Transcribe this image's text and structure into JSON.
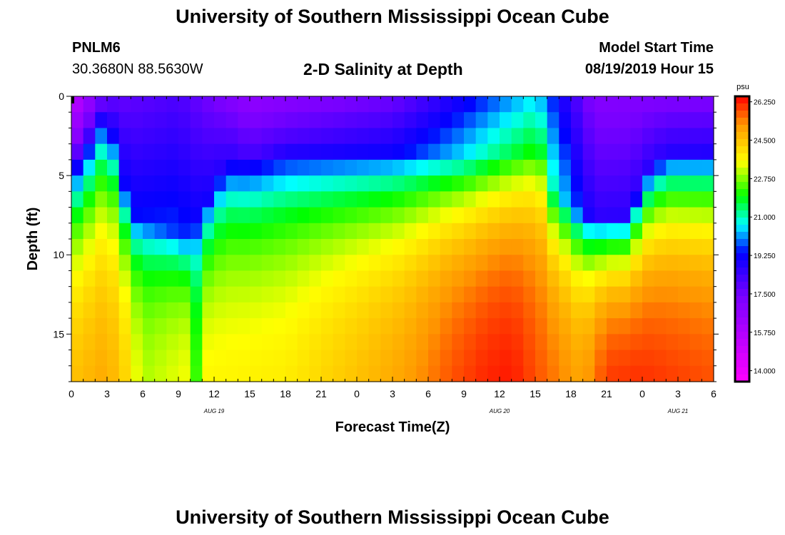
{
  "page": {
    "title_top": "University of Southern Mississippi Ocean Cube",
    "title_bottom": "University of Southern Mississippi Ocean Cube",
    "station_id": "PNLM6",
    "station_coords": "30.3680N 88.5630W",
    "plot_title": "2-D Salinity at Depth",
    "model_label": "Model Start Time",
    "model_time": "08/19/2019 Hour 15"
  },
  "chart_data": {
    "type": "heatmap",
    "title": "2-D Salinity at Depth",
    "xlabel": "Forecast Time(Z)",
    "ylabel": "Depth (ft)",
    "x_ticks": [
      "0",
      "3",
      "6",
      "9",
      "12",
      "15",
      "18",
      "21",
      "0",
      "3",
      "6",
      "9",
      "12",
      "15",
      "18",
      "21",
      "0",
      "3",
      "6"
    ],
    "x_range_hours": [
      0,
      54
    ],
    "date_labels": [
      {
        "text": "AUG 19",
        "hour": 12
      },
      {
        "text": "AUG 20",
        "hour": 36
      },
      {
        "text": "AUG 21",
        "hour": 51
      }
    ],
    "y_ticks": [
      "0",
      "5",
      "10",
      "15"
    ],
    "y_range_ft": [
      0,
      18
    ],
    "colorbar": {
      "unit": "psu",
      "min": 13.5,
      "max": 26.5,
      "ticks": [
        "26.250",
        "24.500",
        "22.750",
        "21.000",
        "19.250",
        "17.500",
        "15.750",
        "14.000"
      ]
    },
    "grid": {
      "columns": 54,
      "rows": 18,
      "x_step_hours": 1,
      "y_step_ft": 1
    },
    "mixed_layer_depth_ft": [
      {
        "hour": 0,
        "depth": 3.5
      },
      {
        "hour": 3,
        "depth": 1.0
      },
      {
        "hour": 5,
        "depth": 7.5
      },
      {
        "hour": 10,
        "depth": 9.0
      },
      {
        "hour": 13,
        "depth": 4.0
      },
      {
        "hour": 18,
        "depth": 3.2
      },
      {
        "hour": 27,
        "depth": 3.5
      },
      {
        "hour": 33,
        "depth": 4.0
      },
      {
        "hour": 40,
        "depth": 3.5
      },
      {
        "hour": 40.5,
        "depth": 6.0
      },
      {
        "hour": 43,
        "depth": 7.5
      },
      {
        "hour": 47,
        "depth": 7.5
      },
      {
        "hour": 48,
        "depth": 5.0
      },
      {
        "hour": 50,
        "depth": 3.5
      },
      {
        "hour": 54,
        "depth": 3.5
      }
    ],
    "surface_salinity_psu": [
      {
        "hour": 0,
        "value": 15.2
      },
      {
        "hour": 3,
        "value": 17.6
      },
      {
        "hour": 9,
        "value": 18.1
      },
      {
        "hour": 15,
        "value": 16.6
      },
      {
        "hour": 27,
        "value": 17.5
      },
      {
        "hour": 36,
        "value": 19.8
      },
      {
        "hour": 39,
        "value": 20.5
      },
      {
        "hour": 44,
        "value": 17.0
      },
      {
        "hour": 54,
        "value": 17.2
      }
    ],
    "bottom_salinity_psu": [
      {
        "hour": 0,
        "value": 24.5
      },
      {
        "hour": 3,
        "value": 24.9
      },
      {
        "hour": 4.5,
        "value": 24.2
      },
      {
        "hour": 6,
        "value": 23.0
      },
      {
        "hour": 10,
        "value": 23.5
      },
      {
        "hour": 10.5,
        "value": 22.3
      },
      {
        "hour": 11,
        "value": 23.6
      },
      {
        "hour": 18,
        "value": 23.8
      },
      {
        "hour": 24,
        "value": 24.5
      },
      {
        "hour": 28,
        "value": 25.0
      },
      {
        "hour": 32,
        "value": 25.8
      },
      {
        "hour": 35,
        "value": 26.2
      },
      {
        "hour": 37,
        "value": 26.3
      },
      {
        "hour": 40,
        "value": 25.6
      },
      {
        "hour": 43,
        "value": 24.9
      },
      {
        "hour": 45,
        "value": 26.0
      },
      {
        "hour": 48,
        "value": 26.1
      },
      {
        "hour": 54,
        "value": 25.8
      }
    ]
  }
}
